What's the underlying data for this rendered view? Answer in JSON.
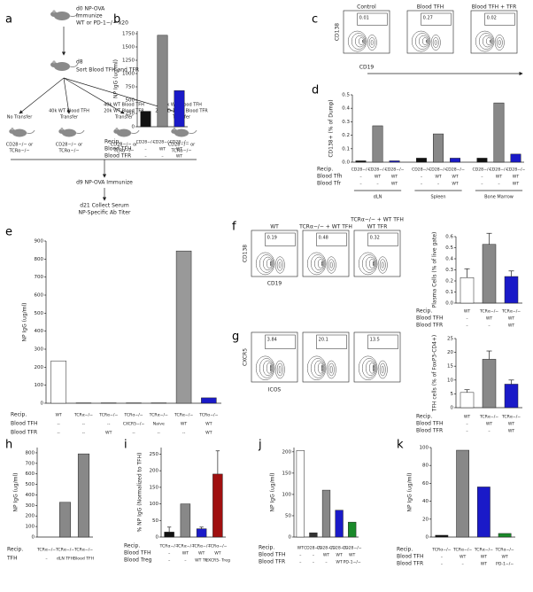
{
  "panel_labels": [
    "a",
    "b",
    "c",
    "d",
    "e",
    "f",
    "g",
    "h",
    "i",
    "j",
    "k"
  ],
  "schematic": {
    "start": [
      "d0 NP-OVA",
      "Immunize",
      "WT or PD-1−/− x20"
    ],
    "sort": [
      "d8",
      "Sort Blood TFH and TFR"
    ],
    "branches": [
      {
        "lines": [
          "No Transfer"
        ],
        "recipient": [
          "CD28−/− or",
          "TCRα−/−"
        ]
      },
      {
        "lines": [
          "40k WT Blood TFH",
          "Transfer"
        ],
        "recipient": [
          "CD28−/− or",
          "TCRα−/−"
        ]
      },
      {
        "lines": [
          "40k WT Blood TFH",
          "20k WT Blood TFR",
          "Transfer"
        ],
        "recipient": [
          "CD28−/− or",
          "TCRα−/−"
        ]
      },
      {
        "lines": [
          "40k WT Blood TFH",
          "20k PD-1−/− Blood TFR",
          "Transfer"
        ],
        "recipient": [
          "CD28−/− or",
          "TCRα−/−"
        ]
      }
    ],
    "end": [
      "d9 NP-OVA Immunize",
      "d21 Collect Serum",
      "NP-Specific Ab Titer"
    ]
  },
  "flow_c": {
    "titles": [
      [
        "Control"
      ],
      [
        "Blood TFH"
      ],
      [
        "Blood TFH + TFR"
      ]
    ],
    "gates": [
      0.01,
      0.27,
      0.02
    ],
    "y_axis": "CD138",
    "x_axis": "CD19"
  },
  "flow_f": {
    "titles": [
      [
        "WT"
      ],
      [
        "TCRα−/− + WT TFH"
      ],
      [
        "TCRα−/− + WT TFH",
        "WT TFR"
      ]
    ],
    "gates": [
      0.19,
      0.48,
      0.32
    ],
    "y_axis": "CD138",
    "x_axis": "CD19"
  },
  "flow_g": {
    "titles": [
      [],
      [],
      []
    ],
    "gates": [
      3.84,
      20.1,
      13.5
    ],
    "y_axis": "CXCR5",
    "x_axis": "ICOS"
  },
  "chart_data": [
    {
      "type": "bar",
      "ylabel": "NP IgG (ug/ml)",
      "ylim": [
        0,
        1800
      ],
      "yticks": [
        0,
        250,
        500,
        750,
        1000,
        1250,
        1500,
        1750
      ],
      "values": [
        290,
        1720,
        680
      ],
      "colors": [
        "#111111",
        "#888888",
        "#1a1ac8"
      ],
      "rows": [
        {
          "label": "Recip.",
          "cells": [
            "CD28−/−",
            "CD28−/−",
            "CD28−/−"
          ]
        },
        {
          "label": "Blood TFH",
          "cells": [
            "–",
            "WT",
            "WT"
          ]
        },
        {
          "label": "Blood TFR",
          "cells": [
            "–",
            "–",
            "WT"
          ]
        }
      ]
    },
    {
      "type": "bar",
      "ylabel": "CD138+ (% of Dump)",
      "ylim": [
        0,
        0.5
      ],
      "yticks": [
        {
          "value": 0,
          "label": "0.0"
        },
        0.1,
        0.2,
        0.3,
        0.4,
        0.5
      ],
      "values": [
        0.01,
        0.27,
        0.01,
        0.03,
        0.21,
        0.03,
        0.03,
        0.44,
        0.06
      ],
      "colors": [
        "#111111",
        "#888888",
        "#1a1ac8",
        "#111111",
        "#888888",
        "#1a1ac8",
        "#111111",
        "#888888",
        "#1a1ac8"
      ],
      "groups": [
        "dLN",
        "Spleen",
        "Bone Marrow"
      ],
      "rows": [
        {
          "label": "Recip.",
          "cells": [
            "CD28−/−",
            "CD28−/−",
            "CD28−/−",
            "CD28−/−",
            "CD28−/−",
            "CD28−/−",
            "CD28−/−",
            "CD28−/−",
            "CD28−/−"
          ]
        },
        {
          "label": "Blood Tfh",
          "cells": [
            "–",
            "WT",
            "WT",
            "–",
            "WT",
            "WT",
            "–",
            "WT",
            "WT"
          ]
        },
        {
          "label": "Blood Tfr",
          "cells": [
            "–",
            "–",
            "WT",
            "–",
            "–",
            "WT",
            "–",
            "–",
            "WT"
          ]
        }
      ]
    },
    {
      "type": "bar",
      "ylabel": "NP IgG (ug/ml)",
      "ylim": [
        0,
        900
      ],
      "yticks": [
        0,
        100,
        200,
        300,
        400,
        500,
        600,
        700,
        800,
        900
      ],
      "values": [
        235,
        2,
        2,
        2,
        2,
        845,
        30
      ],
      "colors": [
        "#ffffff",
        "#ffffff",
        "#ffffff",
        "#ffffff",
        "#ffffff",
        "#999999",
        "#1a1ac8"
      ],
      "rows": [
        {
          "label": "Recip.",
          "cells": [
            "WT",
            "TCRα−/−",
            "TCRα−/−",
            "TCRα−/−",
            "TCRα−/−",
            "TCRα−/−",
            "TCRα−/−"
          ]
        },
        {
          "label": "Blood TFH",
          "cells": [
            "--",
            "--",
            "--",
            "CXCR5−/−",
            "Naive",
            "WT",
            "WT"
          ]
        },
        {
          "label": "Blood TFR",
          "cells": [
            "--",
            "--",
            "WT",
            "--",
            "--",
            "--",
            "WT"
          ]
        }
      ]
    },
    {
      "type": "bar",
      "ylabel": "Plasma Cells (% of live gate)",
      "ylim": [
        0,
        0.6
      ],
      "yticks": [
        {
          "value": 0,
          "label": "0.0"
        },
        0.1,
        0.2,
        0.3,
        0.4,
        0.5,
        0.6
      ],
      "values": [
        0.23,
        0.53,
        0.24
      ],
      "errors": [
        0.08,
        0.1,
        0.05
      ],
      "colors": [
        "#ffffff",
        "#888888",
        "#1a1ac8"
      ],
      "rows": [
        {
          "label": "Recip.",
          "cells": [
            "WT",
            "TCRα−/−",
            "TCRα−/−"
          ]
        },
        {
          "label": "Blood TFH",
          "cells": [
            "–",
            "WT",
            "WT"
          ]
        },
        {
          "label": "Blood TFR",
          "cells": [
            "–",
            "–",
            "WT"
          ]
        }
      ]
    },
    {
      "type": "bar",
      "ylabel": "TFH cells (% of FoxP3-CD4+)",
      "ylim": [
        0,
        25
      ],
      "yticks": [
        0,
        5,
        10,
        15,
        20,
        25
      ],
      "values": [
        5.5,
        17.5,
        8.5
      ],
      "errors": [
        1,
        3,
        1.5
      ],
      "colors": [
        "#ffffff",
        "#888888",
        "#1a1ac8"
      ],
      "rows": [
        {
          "label": "Recip.",
          "cells": [
            "WT",
            "TCRα−/−",
            "TCRα−/−"
          ]
        },
        {
          "label": "Blood TFH",
          "cells": [
            "–",
            "WT",
            "WT"
          ]
        },
        {
          "label": "Blood TFR",
          "cells": [
            "–",
            "–",
            "WT"
          ]
        }
      ]
    },
    {
      "type": "bar",
      "ylabel": "NP IgG (ug/ml)",
      "ylim": [
        0,
        850
      ],
      "yticks": [
        0,
        100,
        200,
        300,
        400,
        500,
        600,
        700,
        800
      ],
      "values": [
        0,
        330,
        790
      ],
      "colors": [
        "#888888",
        "#888888",
        "#888888"
      ],
      "rows": [
        {
          "label": "Recip.",
          "cells": [
            "TCRα−/−",
            "TCRα−/−",
            "TCRα−/−"
          ]
        },
        {
          "label": "TFH",
          "cells": [
            "–",
            "dLN TFH",
            "Blood TFH"
          ]
        }
      ]
    },
    {
      "type": "bar",
      "ylabel": "% NP IgG (Normalized to TFH)",
      "ylim": [
        0,
        270
      ],
      "yticks": [
        0,
        50,
        100,
        150,
        200,
        250
      ],
      "values": [
        15,
        100,
        25,
        190
      ],
      "errors": [
        15,
        0,
        5,
        70
      ],
      "colors": [
        "#111111",
        "#888888",
        "#1a1ac8",
        "#a01010"
      ],
      "rows": [
        {
          "label": "Recip.",
          "cells": [
            "TCRα−/−",
            "TCRα−/−",
            "TCRα−/−",
            "TCRα−/−"
          ]
        },
        {
          "label": "Blood TFH",
          "cells": [
            "–",
            "WT",
            "WT",
            "WT"
          ]
        },
        {
          "label": "Blood Treg",
          "cells": [
            "–",
            "–",
            "WT Tfr",
            "CXCR5- Treg"
          ]
        }
      ]
    },
    {
      "type": "bar",
      "ylabel": "NP IgG (ug/ml)",
      "ylim": [
        0,
        210
      ],
      "yticks": [
        0,
        50,
        100,
        150,
        200
      ],
      "values": [
        203,
        10,
        110,
        63,
        35
      ],
      "colors": [
        "#ffffff",
        "#333333",
        "#888888",
        "#1a1ac8",
        "#1a8a2a"
      ],
      "rows": [
        {
          "label": "Recip.",
          "cells": [
            "WT",
            "CD28−/−",
            "CD28−/−",
            "CD28−/−",
            "CD28−/−"
          ]
        },
        {
          "label": "Blood TFH",
          "cells": [
            "–",
            "–",
            "WT",
            "WT",
            "WT"
          ]
        },
        {
          "label": "Blood TFR",
          "cells": [
            "–",
            "–",
            "–",
            "WT",
            "PD-1−/−"
          ]
        }
      ]
    },
    {
      "type": "bar",
      "ylabel": "NP IgG (ug/ml)",
      "ylim": [
        0,
        100
      ],
      "yticks": [
        0,
        20,
        40,
        60,
        80,
        100
      ],
      "values": [
        2,
        97,
        56,
        4
      ],
      "colors": [
        "#111111",
        "#888888",
        "#1a1ac8",
        "#1a8a2a"
      ],
      "rows": [
        {
          "label": "Recip.",
          "cells": [
            "TCRα−/−",
            "TCRα−/−",
            "TCRα−/−",
            "TCRα−/−"
          ]
        },
        {
          "label": "Blood TFH",
          "cells": [
            "–",
            "WT",
            "WT",
            "WT"
          ]
        },
        {
          "label": "Blood TFR",
          "cells": [
            "–",
            "–",
            "WT",
            "PD-1−/−"
          ]
        }
      ]
    }
  ]
}
